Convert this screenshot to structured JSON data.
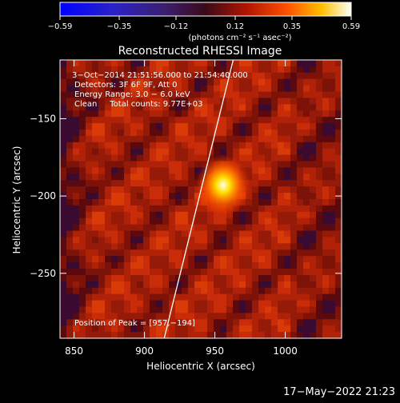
{
  "chart_data": {
    "type": "heatmap",
    "title": "Reconstructed RHESSI Image",
    "xlabel": "Heliocentric X (arcsec)",
    "ylabel": "Heliocentric Y (arcsec)",
    "xlim": [
      840,
      1040
    ],
    "ylim": [
      -292,
      -112
    ],
    "x_ticks": [
      850,
      900,
      950,
      1000
    ],
    "x_tick_labels": [
      "850",
      "900",
      "950",
      "1000"
    ],
    "y_ticks": [
      -150,
      -200,
      -250
    ],
    "y_tick_labels": [
      "−150",
      "−200",
      "−250"
    ],
    "colorbar": {
      "range": [
        -0.59,
        0.59
      ],
      "ticks": [
        -0.59,
        -0.35,
        -0.12,
        0.12,
        0.35,
        0.59
      ],
      "tick_labels": [
        "−0.59",
        "−0.35",
        "−0.12",
        "0.12",
        "0.35",
        "0.59"
      ],
      "unit_label": "(photons cm⁻² s⁻¹ asec⁻²)",
      "colormap": "idl-3-red-temperature-extended"
    },
    "annotations": {
      "time_range": "3−Oct−2014 21:51:56.000 to 21:54:40.000",
      "detectors": "Detectors: 3F 6F 9F, Att 0",
      "energy_range": "Energy Range: 3.0 − 6.0 keV",
      "clean_counts": "Clean     Total counts: 9.77E+03",
      "peak": "Position of Peak = [957,−194]"
    },
    "peak": {
      "x": 957,
      "y": -194,
      "value": 0.59
    },
    "limb_line": [
      [
        914,
        -292
      ],
      [
        963,
        -112
      ]
    ],
    "timestamp": "17−May−2022 21:23"
  }
}
